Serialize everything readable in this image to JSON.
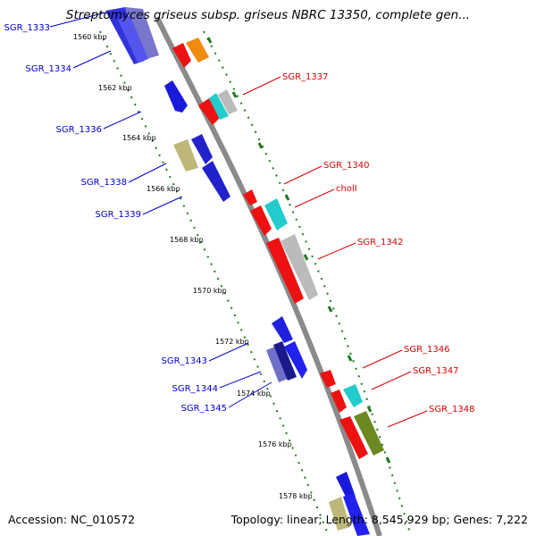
{
  "title": "Streptomyces griseus subsp. griseus NBRC 13350, complete gen...",
  "footer": {
    "accession": "Accession: NC_010572",
    "summary": "Topology: linear; Length: 8,545,929 bp; Genes: 7,222"
  },
  "colors": {
    "backbone": "#8a8a8a",
    "ruler": "#1e7a1e",
    "left_label": "#0000cc",
    "right_label": "#dd0000"
  },
  "ruler_ticks": [
    "1560 kbp",
    "1562 kbp",
    "1564 kbp",
    "1566 kbp",
    "1568 kbp",
    "1570 kbp",
    "1572 kbp",
    "1574 kbp",
    "1576 kbp",
    "1578 kbp"
  ],
  "left_labels": [
    "SGR_1333",
    "SGR_1334",
    "SGR_1336",
    "SGR_1338",
    "SGR_1339",
    "SGR_1343",
    "SGR_1344",
    "SGR_1345"
  ],
  "right_labels": [
    "SGR_1337",
    "SGR_1340",
    "cholI",
    "SGR_1342",
    "SGR_1346",
    "SGR_1347",
    "SGR_1348"
  ]
}
